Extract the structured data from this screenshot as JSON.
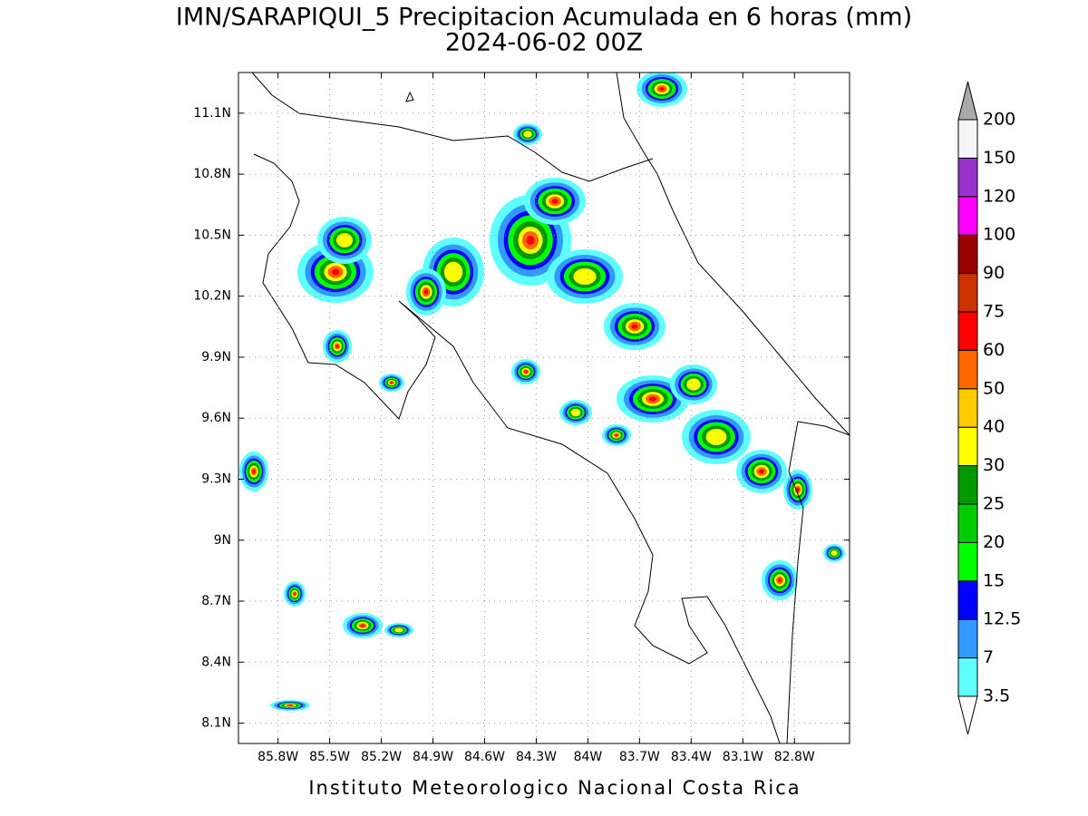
{
  "title": "IMN/SARAPIQUI_5 Precipitacion Acumulada en 6 horas (mm)",
  "subtitle": "2024-06-02 00Z",
  "footer": "Instituto Meteorologico Nacional Costa Rica",
  "map": {
    "xlim": [
      -86.03,
      -82.48
    ],
    "ylim": [
      8.0,
      11.3
    ],
    "grid": true,
    "lat_ticks": [
      {
        "value": 11.1,
        "label": "11.1N"
      },
      {
        "value": 10.8,
        "label": "10.8N"
      },
      {
        "value": 10.5,
        "label": "10.5N"
      },
      {
        "value": 10.2,
        "label": "10.2N"
      },
      {
        "value": 9.9,
        "label": "9.9N"
      },
      {
        "value": 9.6,
        "label": "9.6N"
      },
      {
        "value": 9.3,
        "label": "9.3N"
      },
      {
        "value": 9,
        "label": "9N"
      },
      {
        "value": 8.7,
        "label": "8.7N"
      },
      {
        "value": 8.4,
        "label": "8.4N"
      },
      {
        "value": 8.1,
        "label": "8.1N"
      }
    ],
    "lon_ticks": [
      {
        "value": -85.8,
        "label": "85.8W"
      },
      {
        "value": -85.5,
        "label": "85.5W"
      },
      {
        "value": -85.2,
        "label": "85.2W"
      },
      {
        "value": -84.9,
        "label": "84.9W"
      },
      {
        "value": -84.6,
        "label": "84.6W"
      },
      {
        "value": -84.3,
        "label": "84.3W"
      },
      {
        "value": -84,
        "label": "84W"
      },
      {
        "value": -83.7,
        "label": "83.7W"
      },
      {
        "value": -83.4,
        "label": "83.4W"
      },
      {
        "value": -83.1,
        "label": "83.1W"
      },
      {
        "value": -82.8,
        "label": "82.8W"
      }
    ]
  },
  "colorbar": {
    "levels": [
      3.5,
      7,
      12.5,
      15,
      20,
      25,
      30,
      40,
      50,
      60,
      75,
      90,
      100,
      120,
      150,
      200
    ],
    "colors": [
      "#5fffff",
      "#3399ff",
      "#0000ff",
      "#00ff00",
      "#00cc00",
      "#009900",
      "#ffff00",
      "#ffcc00",
      "#ff6600",
      "#ff0000",
      "#cc3300",
      "#990000",
      "#ff00ff",
      "#9933cc",
      "#f5f5f5"
    ],
    "under_color": "#ffffff",
    "over_color": "#aaaaaa"
  }
}
